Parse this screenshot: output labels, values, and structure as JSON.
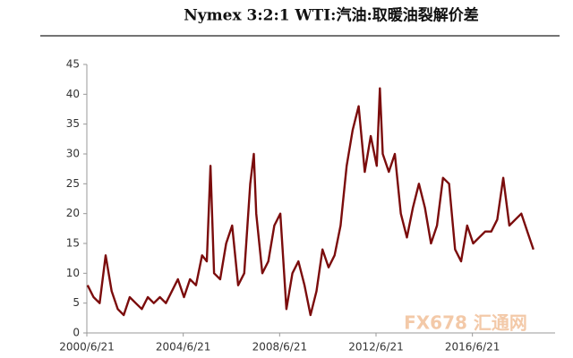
{
  "chart_data": {
    "type": "line",
    "title": "Nymex 3:2:1 WTI:汽油:取暖油裂解价差",
    "watermark": "FX678 汇通网",
    "x": [
      2000.5,
      2000.75,
      2001.0,
      2001.25,
      2001.5,
      2001.75,
      2002.0,
      2002.25,
      2002.5,
      2002.75,
      2003.0,
      2003.25,
      2003.5,
      2003.75,
      2004.0,
      2004.25,
      2004.5,
      2004.75,
      2005.0,
      2005.25,
      2005.45,
      2005.6,
      2005.75,
      2006.0,
      2006.25,
      2006.5,
      2006.75,
      2007.0,
      2007.25,
      2007.4,
      2007.5,
      2007.75,
      2008.0,
      2008.25,
      2008.5,
      2008.75,
      2009.0,
      2009.25,
      2009.5,
      2009.75,
      2010.0,
      2010.25,
      2010.5,
      2010.75,
      2011.0,
      2011.25,
      2011.5,
      2011.75,
      2012.0,
      2012.25,
      2012.5,
      2012.63,
      2012.75,
      2013.0,
      2013.25,
      2013.5,
      2013.75,
      2014.0,
      2014.25,
      2014.5,
      2014.75,
      2015.0,
      2015.25,
      2015.5,
      2015.75,
      2016.0,
      2016.25,
      2016.5,
      2016.75,
      2017.0,
      2017.25,
      2017.5,
      2017.75,
      2018.0,
      2018.25,
      2018.5,
      2018.75,
      2019.0
    ],
    "series": [
      {
        "name": "WTI:汽油:取暖油裂解价差",
        "color": "#7b0c0c",
        "values": [
          8,
          6,
          5,
          13,
          7,
          4,
          3,
          6,
          5,
          4,
          6,
          5,
          6,
          5,
          7,
          9,
          6,
          9,
          8,
          13,
          12,
          28,
          10,
          9,
          15,
          18,
          8,
          10,
          25,
          30,
          20,
          10,
          12,
          18,
          20,
          4,
          10,
          12,
          8,
          3,
          7,
          14,
          11,
          13,
          18,
          28,
          34,
          38,
          27,
          33,
          28,
          41,
          30,
          27,
          30,
          20,
          16,
          21,
          25,
          21,
          15,
          18,
          26,
          25,
          14,
          12,
          18,
          15,
          16,
          17,
          17,
          19,
          26,
          18,
          19,
          20,
          17,
          14
        ]
      }
    ],
    "xlim": [
      2000.47,
      2019.9
    ],
    "xticks": [
      {
        "value": 2000.47,
        "label": "2000/6/21"
      },
      {
        "value": 2004.47,
        "label": "2004/6/21"
      },
      {
        "value": 2008.47,
        "label": "2008/6/21"
      },
      {
        "value": 2012.47,
        "label": "2012/6/21"
      },
      {
        "value": 2016.47,
        "label": "2016/6/21"
      }
    ],
    "ylim": [
      0,
      45
    ],
    "yticks": [
      0,
      5,
      10,
      15,
      20,
      25,
      30,
      35,
      40,
      45
    ]
  }
}
